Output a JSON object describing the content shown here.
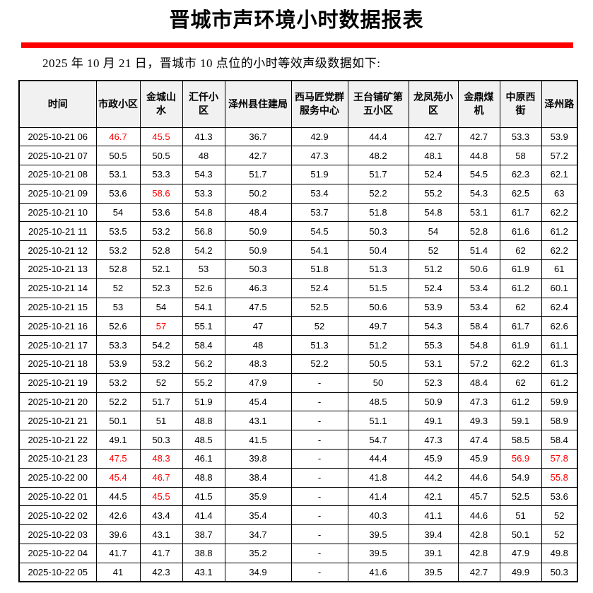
{
  "title": "晋城市声环境小时数据报表",
  "subtitle": "2025 年 10 月 21 日，晋城市 10 点位的小时等效声级数据如下:",
  "accent_color": "#ff0000",
  "table": {
    "headers": [
      "时间",
      "市政小区",
      "金城山水",
      "汇仟小区",
      "泽州县住建局",
      "西马匠党群服务中心",
      "王台铺矿第五小区",
      "龙凤苑小区",
      "金鼎煤机",
      "中原西街",
      "泽州路"
    ],
    "rows": [
      {
        "time": "2025-10-21 06",
        "values": [
          "46.7",
          "45.5",
          "41.3",
          "36.7",
          "42.9",
          "44.4",
          "42.7",
          "42.7",
          "53.3",
          "53.9"
        ],
        "red_indices": [
          0,
          1
        ]
      },
      {
        "time": "2025-10-21 07",
        "values": [
          "50.5",
          "50.5",
          "48",
          "42.7",
          "47.3",
          "48.2",
          "48.1",
          "44.8",
          "58",
          "57.2"
        ],
        "red_indices": []
      },
      {
        "time": "2025-10-21 08",
        "values": [
          "53.1",
          "53.3",
          "54.3",
          "51.7",
          "51.9",
          "51.7",
          "52.4",
          "54.5",
          "62.3",
          "62.1"
        ],
        "red_indices": []
      },
      {
        "time": "2025-10-21 09",
        "values": [
          "53.6",
          "58.6",
          "53.3",
          "50.2",
          "53.4",
          "52.2",
          "55.2",
          "54.3",
          "62.5",
          "63"
        ],
        "red_indices": [
          1
        ]
      },
      {
        "time": "2025-10-21 10",
        "values": [
          "54",
          "53.6",
          "54.8",
          "48.4",
          "53.7",
          "51.8",
          "54.8",
          "53.1",
          "61.7",
          "62.2"
        ],
        "red_indices": []
      },
      {
        "time": "2025-10-21 11",
        "values": [
          "53.5",
          "53.2",
          "56.8",
          "50.9",
          "54.5",
          "50.3",
          "54",
          "52.8",
          "61.6",
          "61.2"
        ],
        "red_indices": []
      },
      {
        "time": "2025-10-21 12",
        "values": [
          "53.2",
          "52.8",
          "54.2",
          "50.9",
          "54.1",
          "50.4",
          "52",
          "51.4",
          "62",
          "62.2"
        ],
        "red_indices": []
      },
      {
        "time": "2025-10-21 13",
        "values": [
          "52.8",
          "52.1",
          "53",
          "50.3",
          "51.8",
          "51.3",
          "51.2",
          "50.6",
          "61.9",
          "61"
        ],
        "red_indices": []
      },
      {
        "time": "2025-10-21 14",
        "values": [
          "52",
          "52.3",
          "52.6",
          "46.3",
          "52.4",
          "51.5",
          "52.4",
          "53.4",
          "61.2",
          "60.1"
        ],
        "red_indices": []
      },
      {
        "time": "2025-10-21 15",
        "values": [
          "53",
          "54",
          "54.1",
          "47.5",
          "52.5",
          "50.6",
          "53.9",
          "53.4",
          "62",
          "62.4"
        ],
        "red_indices": []
      },
      {
        "time": "2025-10-21 16",
        "values": [
          "52.6",
          "57",
          "55.1",
          "47",
          "52",
          "49.7",
          "54.3",
          "58.4",
          "61.7",
          "62.6"
        ],
        "red_indices": [
          1
        ]
      },
      {
        "time": "2025-10-21 17",
        "values": [
          "53.3",
          "54.2",
          "58.4",
          "48",
          "51.3",
          "51.2",
          "55.3",
          "54.8",
          "61.9",
          "61.1"
        ],
        "red_indices": []
      },
      {
        "time": "2025-10-21 18",
        "values": [
          "53.9",
          "53.2",
          "56.2",
          "48.3",
          "52.2",
          "50.5",
          "53.1",
          "57.2",
          "62.2",
          "61.3"
        ],
        "red_indices": []
      },
      {
        "time": "2025-10-21 19",
        "values": [
          "53.2",
          "52",
          "55.2",
          "47.9",
          "-",
          "50",
          "52.3",
          "48.4",
          "62",
          "61.2"
        ],
        "red_indices": []
      },
      {
        "time": "2025-10-21 20",
        "values": [
          "52.2",
          "51.7",
          "51.9",
          "45.4",
          "-",
          "48.5",
          "50.9",
          "47.3",
          "61.2",
          "59.9"
        ],
        "red_indices": []
      },
      {
        "time": "2025-10-21 21",
        "values": [
          "50.1",
          "51",
          "48.8",
          "43.1",
          "-",
          "51.1",
          "49.1",
          "49.3",
          "59.1",
          "58.9"
        ],
        "red_indices": []
      },
      {
        "time": "2025-10-21 22",
        "values": [
          "49.1",
          "50.3",
          "48.5",
          "41.5",
          "-",
          "54.7",
          "47.3",
          "47.4",
          "58.5",
          "58.4"
        ],
        "red_indices": []
      },
      {
        "time": "2025-10-21 23",
        "values": [
          "47.5",
          "48.3",
          "46.1",
          "39.8",
          "-",
          "44.4",
          "45.9",
          "45.9",
          "56.9",
          "57.8"
        ],
        "red_indices": [
          0,
          1,
          8,
          9
        ]
      },
      {
        "time": "2025-10-22 00",
        "values": [
          "45.4",
          "46.7",
          "48.8",
          "38.4",
          "-",
          "41.8",
          "44.2",
          "44.6",
          "54.9",
          "55.8"
        ],
        "red_indices": [
          0,
          1,
          9
        ]
      },
      {
        "time": "2025-10-22 01",
        "values": [
          "44.5",
          "45.5",
          "41.5",
          "35.9",
          "-",
          "41.4",
          "42.1",
          "45.7",
          "52.5",
          "53.6"
        ],
        "red_indices": [
          1
        ]
      },
      {
        "time": "2025-10-22 02",
        "values": [
          "42.6",
          "43.4",
          "41.4",
          "35.4",
          "-",
          "40.3",
          "41.1",
          "44.6",
          "51",
          "52"
        ],
        "red_indices": []
      },
      {
        "time": "2025-10-22 03",
        "values": [
          "39.6",
          "43.1",
          "38.7",
          "34.7",
          "-",
          "39.5",
          "39.4",
          "42.8",
          "50.1",
          "52"
        ],
        "red_indices": []
      },
      {
        "time": "2025-10-22 04",
        "values": [
          "41.7",
          "41.7",
          "38.8",
          "35.2",
          "-",
          "39.5",
          "39.1",
          "42.8",
          "47.9",
          "49.8"
        ],
        "red_indices": []
      },
      {
        "time": "2025-10-22 05",
        "values": [
          "41",
          "42.3",
          "43.1",
          "34.9",
          "-",
          "41.6",
          "39.5",
          "42.7",
          "49.9",
          "50.3"
        ],
        "red_indices": []
      }
    ]
  }
}
